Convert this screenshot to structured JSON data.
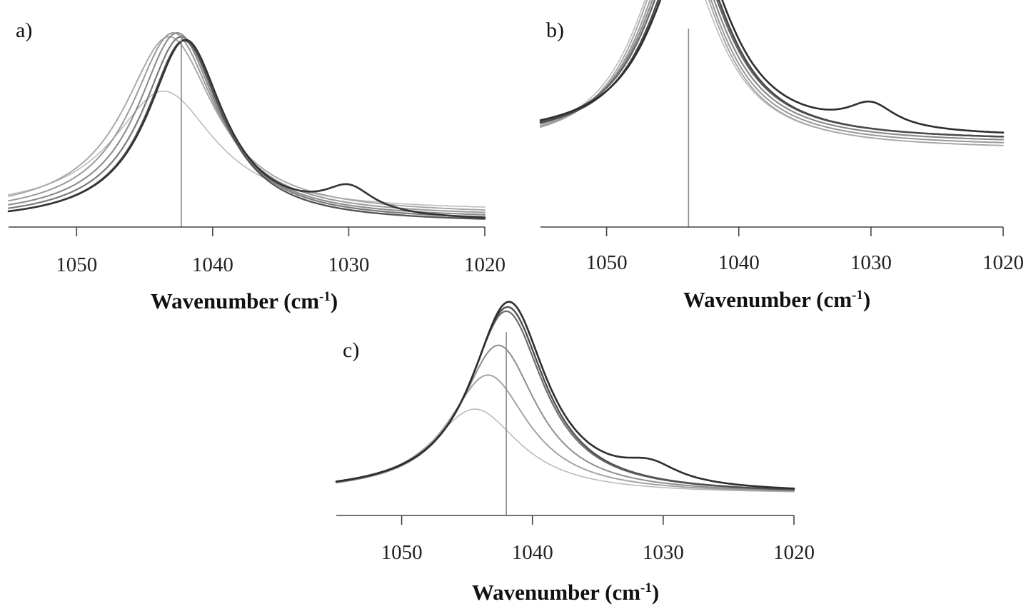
{
  "chart_data": [
    {
      "panel": "a)",
      "type": "line",
      "xlabel": "Wavenumber (cm",
      "xlabel_sup": "-1",
      "xlabel_end": ")",
      "xlim": [
        1055,
        1020
      ],
      "xticks": [
        1050,
        1040,
        1030,
        1020
      ],
      "reference_line_x": 1042.3,
      "series": [
        {
          "color": "#b8b8b8",
          "width": 1.5,
          "base": 0.08,
          "peaks": [
            {
              "c": 1043.6,
              "a": 0.62,
              "w": 4.6
            }
          ]
        },
        {
          "color": "#a6a6a6",
          "width": 1.9,
          "base": 0.06,
          "peaks": [
            {
              "c": 1043.2,
              "a": 0.92,
              "w": 4.1
            }
          ]
        },
        {
          "color": "#9a9a9a",
          "width": 2.0,
          "base": 0.05,
          "peaks": [
            {
              "c": 1042.9,
              "a": 0.95,
              "w": 3.8
            }
          ]
        },
        {
          "color": "#8c8c8c",
          "width": 2.1,
          "base": 0.04,
          "peaks": [
            {
              "c": 1042.6,
              "a": 0.96,
              "w": 3.6
            }
          ]
        },
        {
          "color": "#7a7a7a",
          "width": 2.2,
          "base": 0.03,
          "peaks": [
            {
              "c": 1042.3,
              "a": 0.95,
              "w": 3.5
            }
          ]
        },
        {
          "color": "#555555",
          "width": 2.4,
          "base": 0.02,
          "peaks": [
            {
              "c": 1042.1,
              "a": 0.94,
              "w": 3.4
            }
          ]
        },
        {
          "color": "#333333",
          "width": 2.6,
          "base": 0.02,
          "peaks": [
            {
              "c": 1042.0,
              "a": 0.94,
              "w": 3.4
            },
            {
              "c": 1030.0,
              "a": 0.13,
              "w": 2.2
            }
          ]
        }
      ]
    },
    {
      "panel": "b)",
      "type": "line",
      "xlabel": "Wavenumber (cm",
      "xlabel_sup": "-1",
      "xlabel_end": ")",
      "xlim": [
        1055,
        1020
      ],
      "xticks": [
        1050,
        1040,
        1030,
        1020
      ],
      "reference_line_x": 1043.8,
      "series": [
        {
          "color": "#b8b8b8",
          "width": 1.5,
          "base": 0.26,
          "peaks": [
            {
              "c": 1044.8,
              "a": 0.7,
              "w": 3.7
            }
          ]
        },
        {
          "color": "#a6a6a6",
          "width": 1.9,
          "base": 0.26,
          "peaks": [
            {
              "c": 1044.6,
              "a": 0.72,
              "w": 3.6
            }
          ]
        },
        {
          "color": "#999999",
          "width": 2.0,
          "base": 0.27,
          "peaks": [
            {
              "c": 1044.4,
              "a": 0.7,
              "w": 3.6
            }
          ]
        },
        {
          "color": "#888888",
          "width": 2.1,
          "base": 0.28,
          "peaks": [
            {
              "c": 1044.2,
              "a": 0.69,
              "w": 3.6
            }
          ]
        },
        {
          "color": "#666666",
          "width": 2.3,
          "base": 0.29,
          "peaks": [
            {
              "c": 1044.0,
              "a": 0.68,
              "w": 3.6
            }
          ]
        },
        {
          "color": "#4a4a4a",
          "width": 2.5,
          "base": 0.29,
          "peaks": [
            {
              "c": 1043.8,
              "a": 0.67,
              "w": 3.6
            }
          ]
        },
        {
          "color": "#2e2e2e",
          "width": 2.6,
          "base": 0.3,
          "peaks": [
            {
              "c": 1043.6,
              "a": 0.66,
              "w": 3.6
            },
            {
              "c": 1030.0,
              "a": 0.08,
              "w": 2.2
            }
          ]
        }
      ]
    },
    {
      "panel": "c)",
      "type": "line",
      "xlabel": "Wavenumber (cm",
      "xlabel_sup": "-1",
      "xlabel_end": ")",
      "xlim": [
        1055,
        1020
      ],
      "xticks": [
        1050,
        1040,
        1030,
        1020
      ],
      "reference_line_x": 1042.0,
      "series": [
        {
          "color": "#b8b8b8",
          "width": 1.5,
          "base": 0.1,
          "peaks": [
            {
              "c": 1044.4,
              "a": 0.4,
              "w": 4.2
            }
          ]
        },
        {
          "color": "#a0a0a0",
          "width": 1.9,
          "base": 0.1,
          "peaks": [
            {
              "c": 1043.4,
              "a": 0.56,
              "w": 3.8
            }
          ]
        },
        {
          "color": "#8e8e8e",
          "width": 2.0,
          "base": 0.1,
          "peaks": [
            {
              "c": 1042.6,
              "a": 0.7,
              "w": 3.6
            }
          ]
        },
        {
          "color": "#6e6e6e",
          "width": 2.2,
          "base": 0.1,
          "peaks": [
            {
              "c": 1042.0,
              "a": 0.86,
              "w": 3.5
            }
          ]
        },
        {
          "color": "#505050",
          "width": 2.4,
          "base": 0.1,
          "peaks": [
            {
              "c": 1041.9,
              "a": 0.88,
              "w": 3.5
            }
          ]
        },
        {
          "color": "#2e2e2e",
          "width": 2.6,
          "base": 0.1,
          "peaks": [
            {
              "c": 1041.8,
              "a": 0.9,
              "w": 3.5
            },
            {
              "c": 1031.0,
              "a": 0.08,
              "w": 2.6
            }
          ]
        }
      ]
    }
  ]
}
